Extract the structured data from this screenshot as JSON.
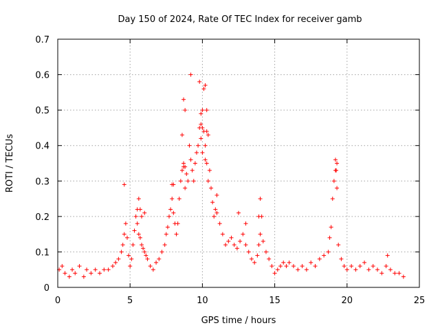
{
  "chart_data": {
    "type": "scatter",
    "title": "Day 150 of 2024, Rate Of TEC Index for receiver gamb",
    "xlabel": "GPS time / hours",
    "ylabel": "ROTI / TECUs",
    "xlim": [
      0,
      25
    ],
    "ylim": [
      0,
      0.7
    ],
    "x_ticks": [
      0,
      5,
      10,
      15,
      20,
      25
    ],
    "x_tick_labels": [
      "0",
      "5",
      "10",
      "15",
      "20",
      "25"
    ],
    "y_ticks": [
      0,
      0.1,
      0.2,
      0.3,
      0.4,
      0.5,
      0.6,
      0.7
    ],
    "y_tick_labels": [
      "0",
      "0.1",
      "0.2",
      "0.3",
      "0.4",
      "0.5",
      "0.6",
      "0.7"
    ],
    "grid": true,
    "marker": "plus",
    "color": "#ff0000",
    "x_range_of_data": [
      0,
      24
    ],
    "series": [
      {
        "x": [
          0.1,
          0.3,
          0.5,
          0.8,
          1.0,
          1.2,
          1.5,
          1.8,
          2.0,
          2.3,
          2.6,
          2.9,
          3.2,
          3.5,
          3.8,
          4.0,
          4.2,
          4.4,
          4.5,
          4.6,
          4.7,
          4.8,
          4.9,
          5.0,
          5.1,
          5.2,
          5.3,
          5.4,
          5.5,
          5.6,
          5.7,
          5.8,
          5.9,
          6.0,
          6.1,
          6.2,
          6.4,
          6.6,
          6.8,
          7.0,
          7.2,
          7.4,
          7.5,
          7.6,
          7.7,
          7.8,
          7.9,
          8.0,
          8.1,
          8.2,
          8.3,
          8.4,
          8.5,
          8.6,
          8.7,
          8.8,
          8.9,
          9.0,
          9.1,
          9.2,
          9.3,
          9.4,
          9.5,
          9.6,
          9.7,
          9.8,
          9.9,
          10.0,
          10.1,
          10.2,
          10.3,
          10.4,
          10.5,
          10.6,
          10.7,
          10.8,
          10.9,
          11.0,
          11.2,
          11.4,
          11.6,
          11.8,
          12.0,
          12.2,
          12.4,
          12.6,
          12.8,
          13.0,
          13.2,
          13.4,
          13.6,
          13.8,
          13.9,
          14.0,
          14.1,
          14.2,
          14.4,
          14.6,
          14.8,
          15.0,
          15.2,
          15.4,
          15.6,
          15.8,
          16.0,
          16.3,
          16.6,
          16.9,
          17.2,
          17.5,
          17.8,
          18.1,
          18.4,
          18.7,
          18.8,
          18.9,
          19.0,
          19.1,
          19.2,
          19.3,
          19.4,
          19.6,
          19.8,
          20.0,
          20.3,
          20.6,
          20.9,
          21.2,
          21.5,
          21.8,
          22.1,
          22.4,
          22.7,
          22.8,
          23.0,
          23.3,
          23.6,
          23.9,
          4.6,
          5.6,
          8.6,
          8.7,
          8.8,
          9.2,
          9.8,
          9.9,
          10.0,
          10.1,
          10.2,
          10.3,
          10.3,
          10.4,
          10.0,
          9.9,
          10.2,
          8.8,
          8.7,
          7.9,
          8.0,
          19.2,
          19.3,
          19.25,
          14.0,
          13.9,
          5.5,
          5.8,
          5.7,
          6.0,
          11.0,
          12.5,
          13.0
        ],
        "y": [
          0.05,
          0.06,
          0.04,
          0.03,
          0.05,
          0.04,
          0.06,
          0.03,
          0.05,
          0.04,
          0.05,
          0.04,
          0.05,
          0.05,
          0.06,
          0.07,
          0.08,
          0.1,
          0.12,
          0.15,
          0.18,
          0.14,
          0.09,
          0.06,
          0.08,
          0.12,
          0.16,
          0.2,
          0.18,
          0.15,
          0.14,
          0.12,
          0.11,
          0.1,
          0.09,
          0.08,
          0.06,
          0.05,
          0.07,
          0.08,
          0.1,
          0.12,
          0.15,
          0.17,
          0.2,
          0.22,
          0.25,
          0.21,
          0.18,
          0.15,
          0.18,
          0.25,
          0.3,
          0.33,
          0.35,
          0.28,
          0.32,
          0.3,
          0.4,
          0.36,
          0.33,
          0.3,
          0.35,
          0.38,
          0.4,
          0.45,
          0.42,
          0.5,
          0.44,
          0.4,
          0.35,
          0.3,
          0.33,
          0.28,
          0.24,
          0.2,
          0.22,
          0.21,
          0.18,
          0.15,
          0.12,
          0.13,
          0.14,
          0.12,
          0.11,
          0.13,
          0.15,
          0.12,
          0.1,
          0.08,
          0.07,
          0.09,
          0.12,
          0.15,
          0.2,
          0.13,
          0.1,
          0.08,
          0.06,
          0.04,
          0.05,
          0.06,
          0.07,
          0.06,
          0.07,
          0.06,
          0.05,
          0.06,
          0.05,
          0.07,
          0.06,
          0.08,
          0.09,
          0.1,
          0.14,
          0.17,
          0.25,
          0.3,
          0.33,
          0.28,
          0.12,
          0.08,
          0.06,
          0.05,
          0.06,
          0.05,
          0.06,
          0.07,
          0.05,
          0.06,
          0.05,
          0.04,
          0.06,
          0.09,
          0.05,
          0.04,
          0.04,
          0.03,
          0.29,
          0.25,
          0.43,
          0.53,
          0.5,
          0.6,
          0.58,
          0.49,
          0.45,
          0.56,
          0.57,
          0.5,
          0.44,
          0.43,
          0.38,
          0.46,
          0.36,
          0.34,
          0.34,
          0.29,
          0.29,
          0.36,
          0.35,
          0.33,
          0.25,
          0.2,
          0.22,
          0.2,
          0.22,
          0.21,
          0.26,
          0.21,
          0.18
        ]
      }
    ]
  }
}
